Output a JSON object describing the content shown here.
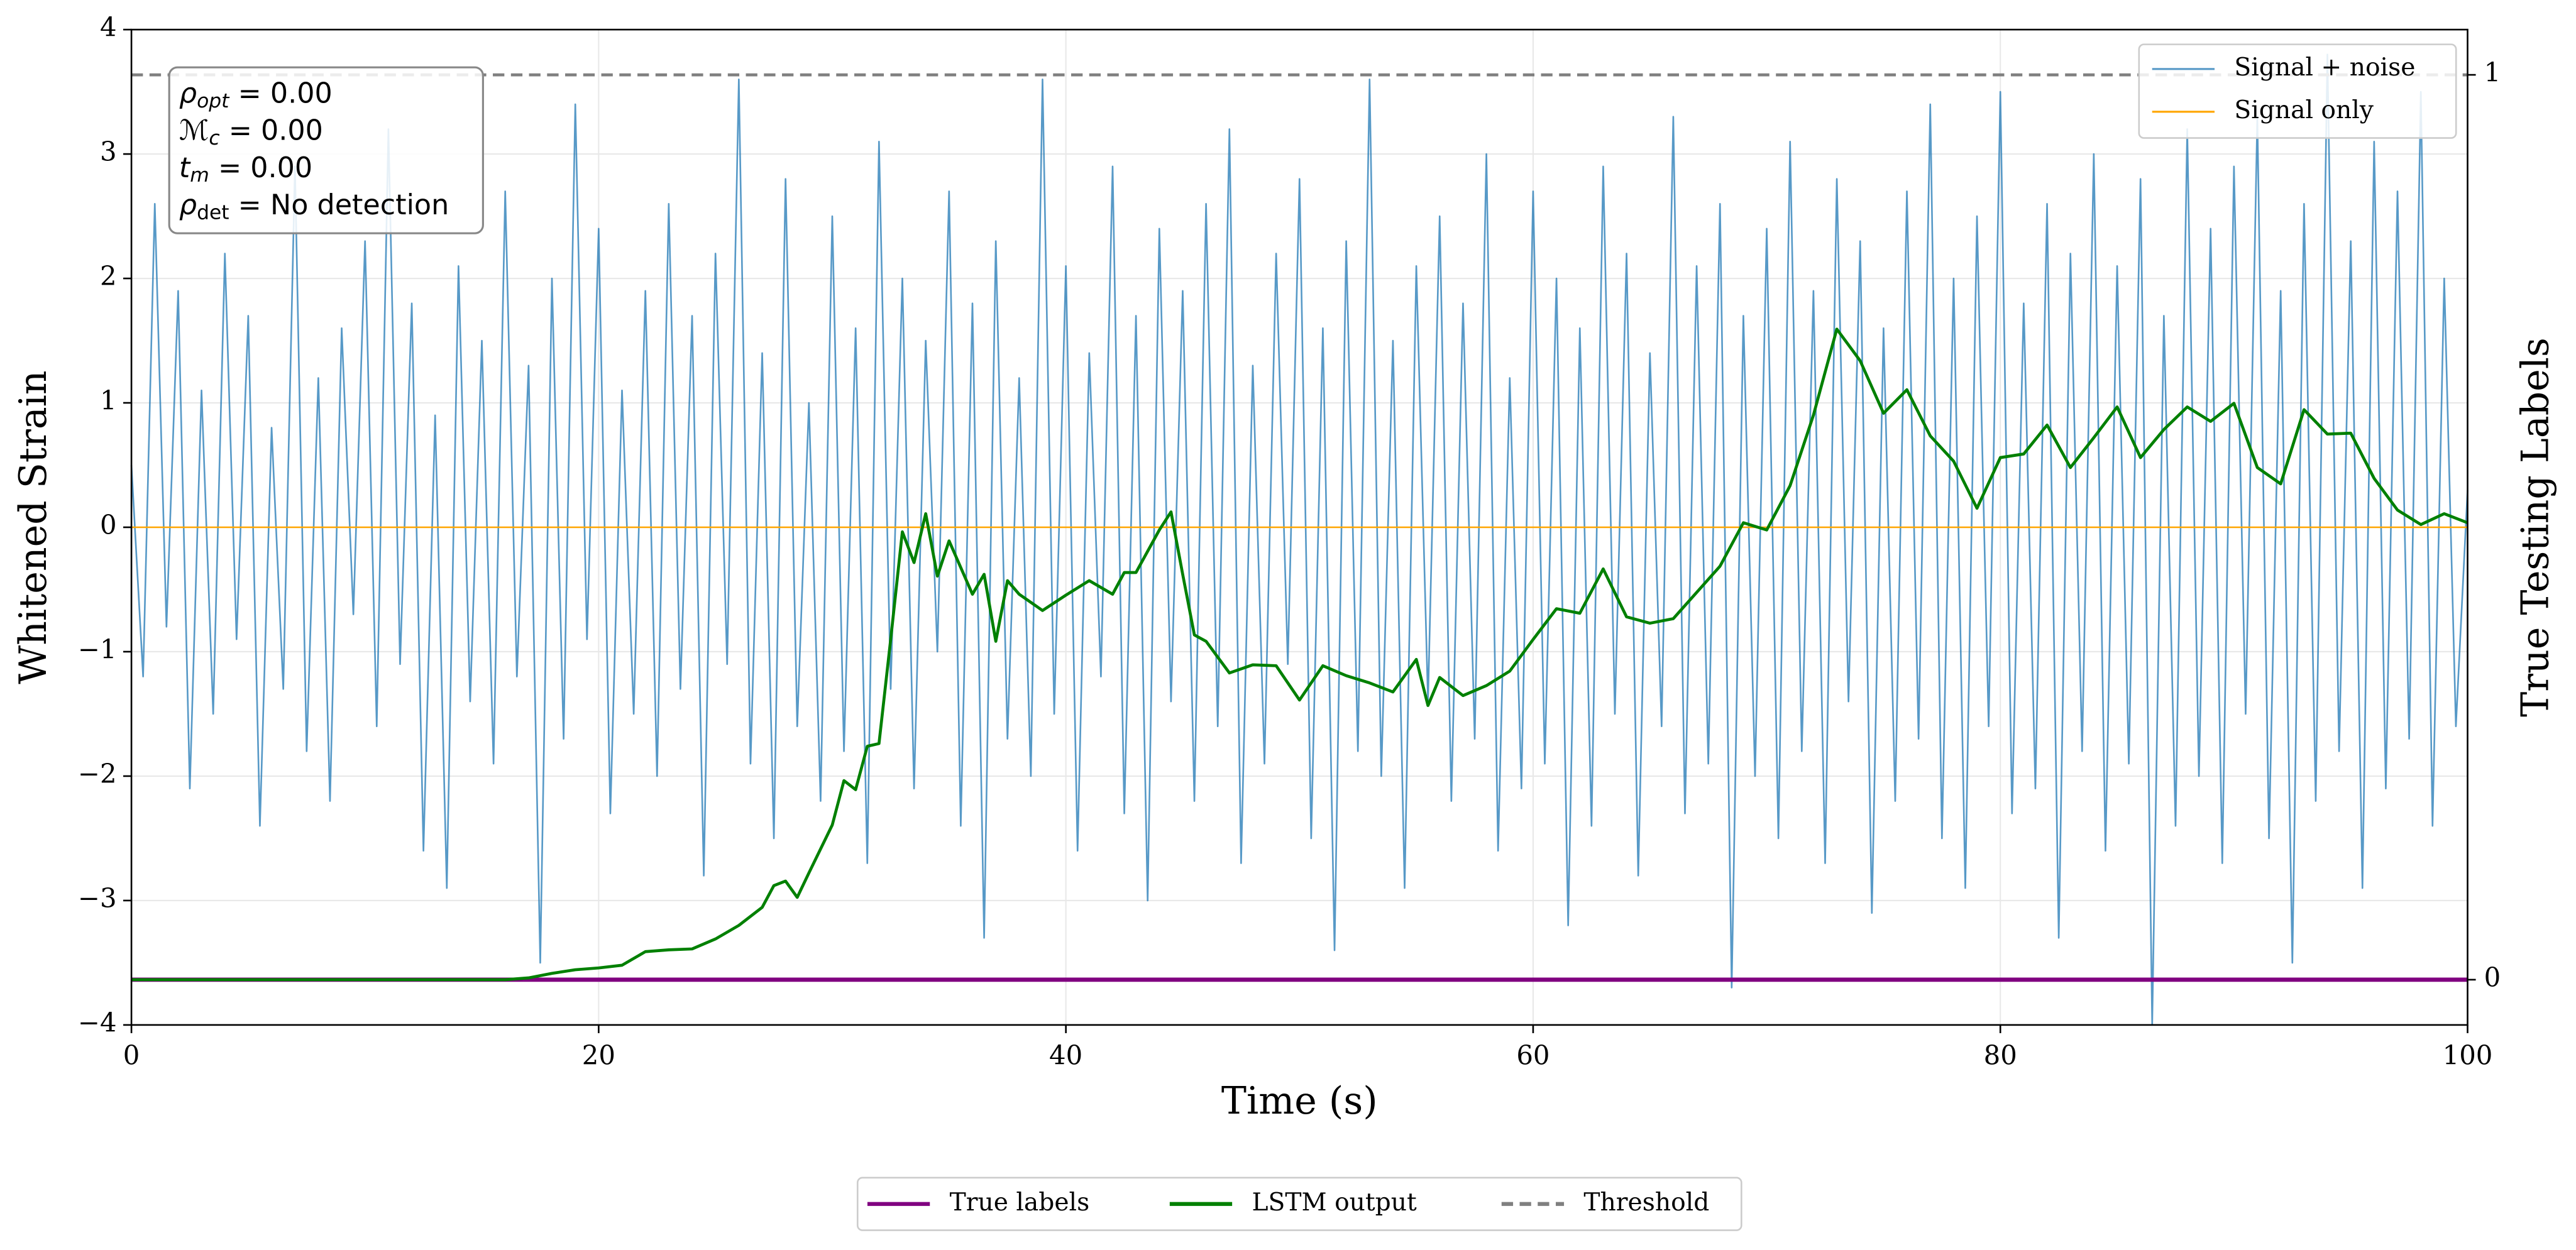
{
  "chart_data": {
    "type": "line",
    "xlabel": "Time (s)",
    "ylabel": "Whitened Strain",
    "y2label": "True Testing Labels",
    "xlim": [
      0,
      100
    ],
    "xticks": [
      0,
      20,
      40,
      60,
      80,
      100
    ],
    "ylim": [
      -4,
      4
    ],
    "yticks": [
      {
        "value": -4,
        "label": "−4"
      },
      {
        "value": -3,
        "label": "−3"
      },
      {
        "value": -2,
        "label": "−2"
      },
      {
        "value": -1,
        "label": "−1"
      },
      0,
      1,
      2,
      3,
      4
    ],
    "y2lim": [
      -0.05,
      1.05
    ],
    "y2ticks": [
      0,
      1
    ],
    "grid": true,
    "annotations": [
      {
        "symbol": "ρ",
        "subscript": "opt",
        "text": " = 0.00"
      },
      {
        "symbol": "ℳ",
        "subscript": "c",
        "text": " = 0.00"
      },
      {
        "symbol": "t",
        "subscript": "m",
        "text": " = 0.00"
      },
      {
        "symbol": "ρ",
        "subscript": "det",
        "text": " = No detection"
      }
    ],
    "series": [
      {
        "name": "Signal + noise",
        "color": "#1f77b4",
        "legend": "upper right",
        "x": [
          0,
          0.5,
          1,
          1.5,
          2,
          2.5,
          3,
          3.5,
          4,
          4.5,
          5,
          5.5,
          6,
          6.5,
          7,
          7.5,
          8,
          8.5,
          9,
          9.5,
          10,
          10.5,
          11,
          11.5,
          12,
          12.5,
          13,
          13.5,
          14,
          14.5,
          15,
          15.5,
          16,
          16.5,
          17,
          17.5,
          18,
          18.5,
          19,
          19.5,
          20,
          20.5,
          21,
          21.5,
          22,
          22.5,
          23,
          23.5,
          24,
          24.5,
          25,
          25.5,
          26,
          26.5,
          27,
          27.5,
          28,
          28.5,
          29,
          29.5,
          30,
          30.5,
          31,
          31.5,
          32,
          32.5,
          33,
          33.5,
          34,
          34.5,
          35,
          35.5,
          36,
          36.5,
          37,
          37.5,
          38,
          38.5,
          39,
          39.5,
          40,
          40.5,
          41,
          41.5,
          42,
          42.5,
          43,
          43.5,
          44,
          44.5,
          45,
          45.5,
          46,
          46.5,
          47,
          47.5,
          48,
          48.5,
          49,
          49.5,
          50,
          50.5,
          51,
          51.5,
          52,
          52.5,
          53,
          53.5,
          54,
          54.5,
          55,
          55.5,
          56,
          56.5,
          57,
          57.5,
          58,
          58.5,
          59,
          59.5,
          60,
          60.5,
          61,
          61.5,
          62,
          62.5,
          63,
          63.5,
          64,
          64.5,
          65,
          65.5,
          66,
          66.5,
          67,
          67.5,
          68,
          68.5,
          69,
          69.5,
          70,
          70.5,
          71,
          71.5,
          72,
          72.5,
          73,
          73.5,
          74,
          74.5,
          75,
          75.5,
          76,
          76.5,
          77,
          77.5,
          78,
          78.5,
          79,
          79.5,
          80,
          80.5,
          81,
          81.5,
          82,
          82.5,
          83,
          83.5,
          84,
          84.5,
          85,
          85.5,
          86,
          86.5,
          87,
          87.5,
          88,
          88.5,
          89,
          89.5,
          90,
          90.5,
          91,
          91.5,
          92,
          92.5,
          93,
          93.5,
          94,
          94.5,
          95,
          95.5,
          96,
          96.5,
          97,
          97.5,
          98,
          98.5,
          99,
          99.5,
          100
        ],
        "values": [
          0.5,
          -1.2,
          2.6,
          -0.8,
          1.9,
          -2.1,
          1.1,
          -1.5,
          2.2,
          -0.9,
          1.7,
          -2.4,
          0.8,
          -1.3,
          2.9,
          -1.8,
          1.2,
          -2.2,
          1.6,
          -0.7,
          2.3,
          -1.6,
          3.2,
          -1.1,
          1.8,
          -2.6,
          0.9,
          -2.9,
          2.1,
          -1.4,
          1.5,
          -1.9,
          2.7,
          -1.2,
          1.3,
          -3.5,
          2.0,
          -1.7,
          3.4,
          -0.9,
          2.4,
          -2.3,
          1.1,
          -1.5,
          1.9,
          -2.0,
          2.6,
          -1.3,
          1.7,
          -2.8,
          2.2,
          -1.1,
          3.6,
          -1.9,
          1.4,
          -2.5,
          2.8,
          -1.6,
          1.0,
          -2.2,
          2.5,
          -1.8,
          1.6,
          -2.7,
          3.1,
          -1.3,
          2.0,
          -2.1,
          1.5,
          -1.0,
          2.7,
          -2.4,
          1.8,
          -3.3,
          2.3,
          -1.7,
          1.2,
          -2.0,
          3.6,
          -1.5,
          2.1,
          -2.6,
          1.4,
          -1.2,
          2.9,
          -2.3,
          1.7,
          -3.0,
          2.4,
          -1.4,
          1.9,
          -2.2,
          2.6,
          -1.6,
          3.2,
          -2.7,
          1.3,
          -1.9,
          2.2,
          -1.1,
          2.8,
          -2.5,
          1.6,
          -3.4,
          2.3,
          -1.8,
          3.6,
          -2.0,
          1.5,
          -2.9,
          2.1,
          -1.4,
          2.5,
          -2.2,
          1.8,
          -1.7,
          3.0,
          -2.6,
          1.2,
          -2.1,
          2.7,
          -1.9,
          2.0,
          -3.2,
          1.6,
          -2.4,
          2.9,
          -1.5,
          2.2,
          -2.8,
          1.4,
          -1.6,
          3.3,
          -2.3,
          2.1,
          -1.9,
          2.6,
          -3.7,
          1.7,
          -2.0,
          2.4,
          -2.5,
          3.1,
          -1.8,
          1.9,
          -2.7,
          2.8,
          -1.4,
          2.3,
          -3.1,
          1.6,
          -2.2,
          2.7,
          -1.7,
          3.4,
          -2.5,
          2.0,
          -2.9,
          2.5,
          -1.6,
          3.5,
          -2.3,
          1.8,
          -2.1,
          2.6,
          -3.3,
          2.2,
          -1.8,
          3.0,
          -2.6,
          2.1,
          -1.9,
          2.8,
          -4.0,
          1.7,
          -2.4,
          3.2,
          -2.0,
          2.4,
          -2.7,
          2.9,
          -1.5,
          3.3,
          -2.5,
          1.9,
          -3.5,
          2.6,
          -2.2,
          3.8,
          -1.8,
          2.3,
          -2.9,
          3.1,
          -2.1,
          2.7,
          -1.7,
          3.5,
          -2.4,
          2.0,
          -1.6,
          0.3
        ]
      },
      {
        "name": "Signal only",
        "color": "#ffa500",
        "legend": "upper right",
        "x": [
          0,
          100
        ],
        "values": [
          0,
          0
        ]
      },
      {
        "name": "True labels",
        "color": "#800080",
        "legend": "lower center",
        "axis": "y2",
        "x": [
          0,
          100
        ],
        "values": [
          0,
          0
        ]
      },
      {
        "name": "LSTM output",
        "color": "#008000",
        "legend": "lower center",
        "axis": "y2",
        "x": [
          0,
          16,
          17,
          18,
          19,
          20,
          21,
          22,
          23,
          24,
          25,
          26,
          27,
          27.5,
          28,
          28.5,
          29,
          30,
          30.5,
          31,
          31.5,
          32,
          32.5,
          33,
          33.5,
          34,
          34.5,
          35,
          36,
          36.5,
          37,
          37.5,
          38,
          39,
          40,
          41,
          42,
          42.5,
          43,
          44,
          44.5,
          45,
          45.5,
          46,
          47,
          48,
          49,
          50,
          51,
          52,
          53,
          54,
          55,
          55.5,
          56,
          57,
          58,
          59,
          60,
          61,
          62,
          63,
          64,
          65,
          66,
          67,
          68,
          69,
          70,
          71,
          72,
          73,
          74,
          75,
          76,
          77,
          78,
          79,
          80,
          81,
          82,
          83,
          84,
          85,
          86,
          87,
          88,
          89,
          90,
          91,
          92,
          93,
          94,
          95,
          96,
          97,
          98,
          99,
          100
        ],
        "values": [
          0,
          0,
          0.002,
          0.007,
          0.011,
          0.013,
          0.016,
          0.031,
          0.033,
          0.034,
          0.045,
          0.06,
          0.08,
          0.104,
          0.109,
          0.091,
          0.118,
          0.171,
          0.22,
          0.21,
          0.258,
          0.261,
          0.376,
          0.495,
          0.461,
          0.515,
          0.446,
          0.485,
          0.426,
          0.448,
          0.374,
          0.441,
          0.426,
          0.408,
          0.425,
          0.441,
          0.426,
          0.45,
          0.45,
          0.497,
          0.517,
          0.448,
          0.381,
          0.374,
          0.339,
          0.348,
          0.347,
          0.309,
          0.347,
          0.336,
          0.328,
          0.318,
          0.354,
          0.303,
          0.334,
          0.314,
          0.325,
          0.341,
          0.376,
          0.41,
          0.405,
          0.454,
          0.401,
          0.394,
          0.399,
          0.428,
          0.457,
          0.505,
          0.497,
          0.546,
          0.624,
          0.719,
          0.684,
          0.626,
          0.652,
          0.601,
          0.573,
          0.521,
          0.577,
          0.581,
          0.613,
          0.566,
          0.599,
          0.633,
          0.577,
          0.608,
          0.633,
          0.617,
          0.637,
          0.566,
          0.548,
          0.63,
          0.603,
          0.604,
          0.554,
          0.519,
          0.503,
          0.515,
          0.505
        ]
      },
      {
        "name": "Threshold",
        "color": "#808080",
        "legend": "lower center",
        "axis": "y2",
        "dash": true,
        "x": [
          0,
          100
        ],
        "values": [
          1,
          1
        ]
      }
    ]
  }
}
